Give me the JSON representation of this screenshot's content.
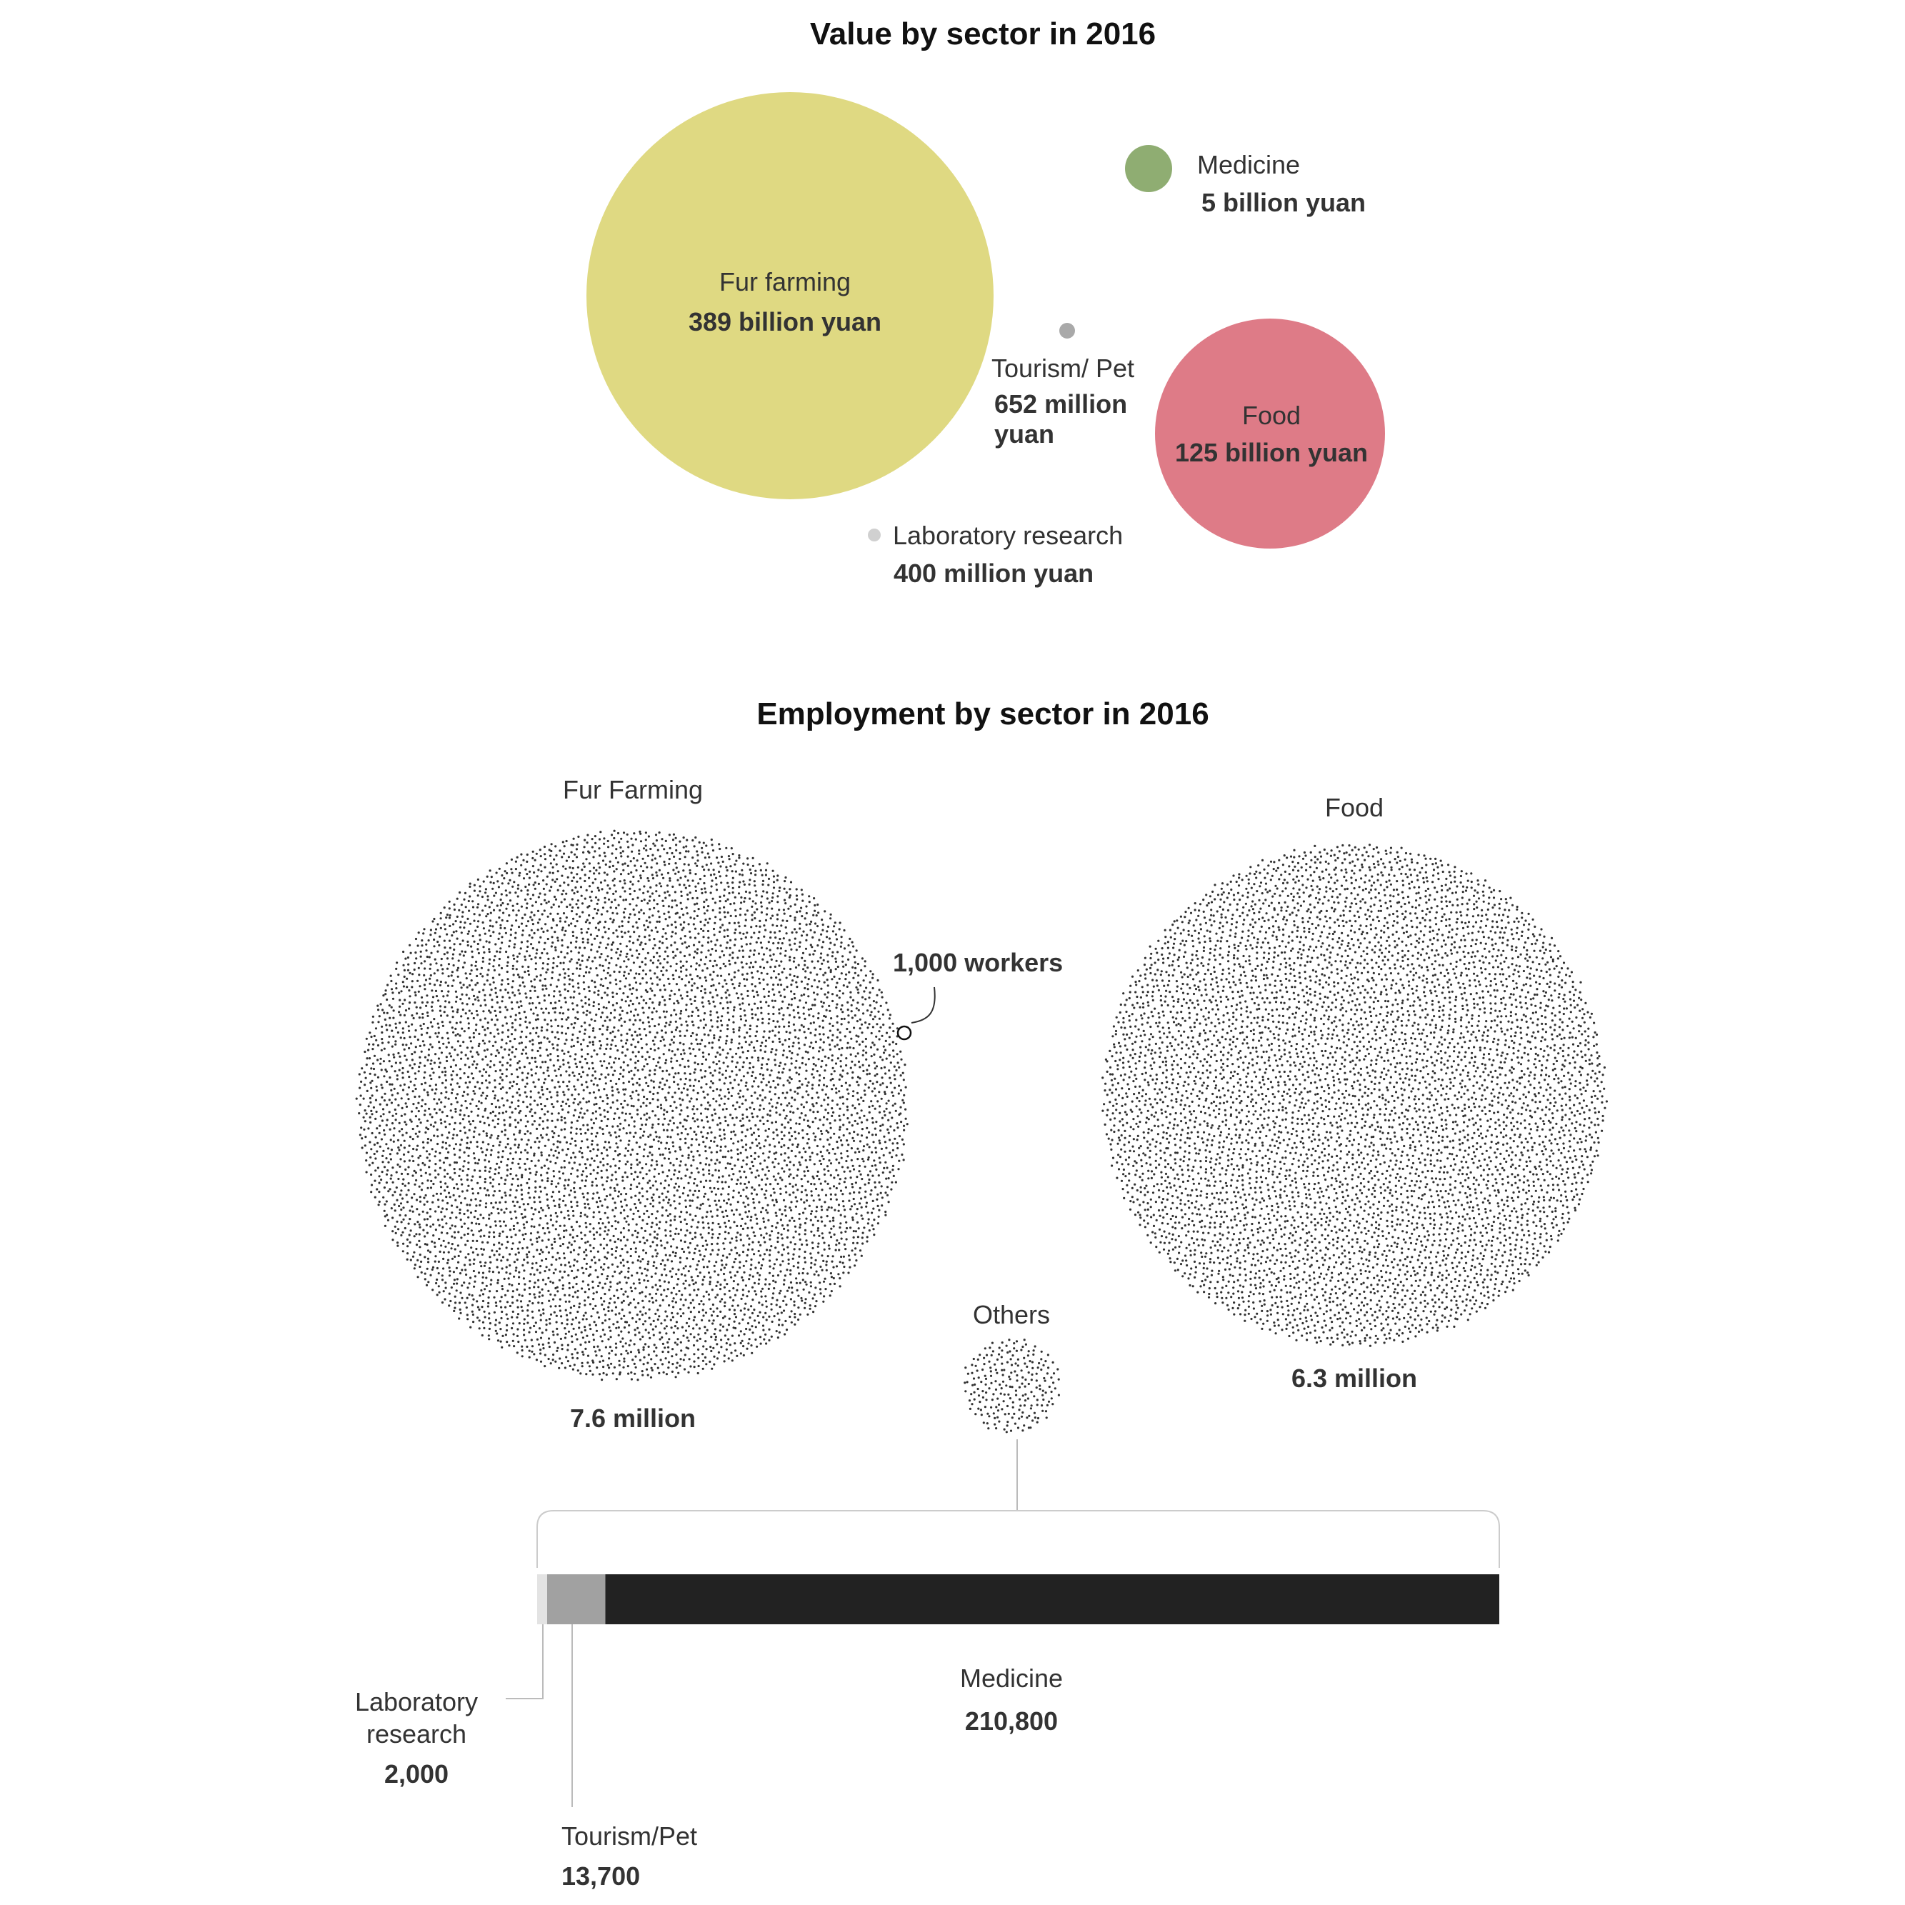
{
  "chart_data": [
    {
      "type": "bubble",
      "title": "Value by sector in 2016",
      "unit": "yuan",
      "colors": {
        "fur_farming": "#dfd982",
        "medicine": "#8fad72",
        "food": "#de7b87",
        "tourism_pet": "#a9a9a9",
        "laboratory_research": "#d0d0d0"
      },
      "series": [
        {
          "id": "fur_farming",
          "label": "Fur farming",
          "value_text": "389 billion yuan",
          "value": 389000000000
        },
        {
          "id": "medicine",
          "label": "Medicine",
          "value_text": "5 billion yuan",
          "value": 5000000000
        },
        {
          "id": "tourism_pet",
          "label": "Tourism/ Pet",
          "value_text_lines": [
            "652 million",
            "yuan"
          ],
          "value": 652000000
        },
        {
          "id": "food",
          "label": "Food",
          "value_text": "125 billion yuan",
          "value": 125000000000
        },
        {
          "id": "laboratory_research",
          "label": "Laboratory research",
          "value_text": "400 million yuan",
          "value": 400000000
        }
      ]
    },
    {
      "type": "dot-cluster",
      "title": "Employment by sector in 2016",
      "unit_annotation": "1,000 workers",
      "workers_per_dot": 1000,
      "dot_color": "#333333",
      "series": [
        {
          "id": "fur_farming",
          "label": "Fur Farming",
          "value_text": "7.6 million",
          "value": 7600000
        },
        {
          "id": "food",
          "label": "Food",
          "value_text": "6.3 million",
          "value": 6300000
        },
        {
          "id": "others",
          "label": "Others",
          "value": 226500
        }
      ],
      "others_breakdown": {
        "type": "stacked-bar",
        "segments": [
          {
            "id": "laboratory_research",
            "label_lines": [
              "Laboratory",
              "research"
            ],
            "value_text": "2,000",
            "value": 2000,
            "color": "#e3e3e3"
          },
          {
            "id": "tourism_pet",
            "label": "Tourism/Pet",
            "value_text": "13,700",
            "value": 13700,
            "color": "#a1a1a1"
          },
          {
            "id": "medicine",
            "label": "Medicine",
            "value_text": "210,800",
            "value": 210800,
            "color": "#222222"
          }
        ]
      }
    }
  ]
}
